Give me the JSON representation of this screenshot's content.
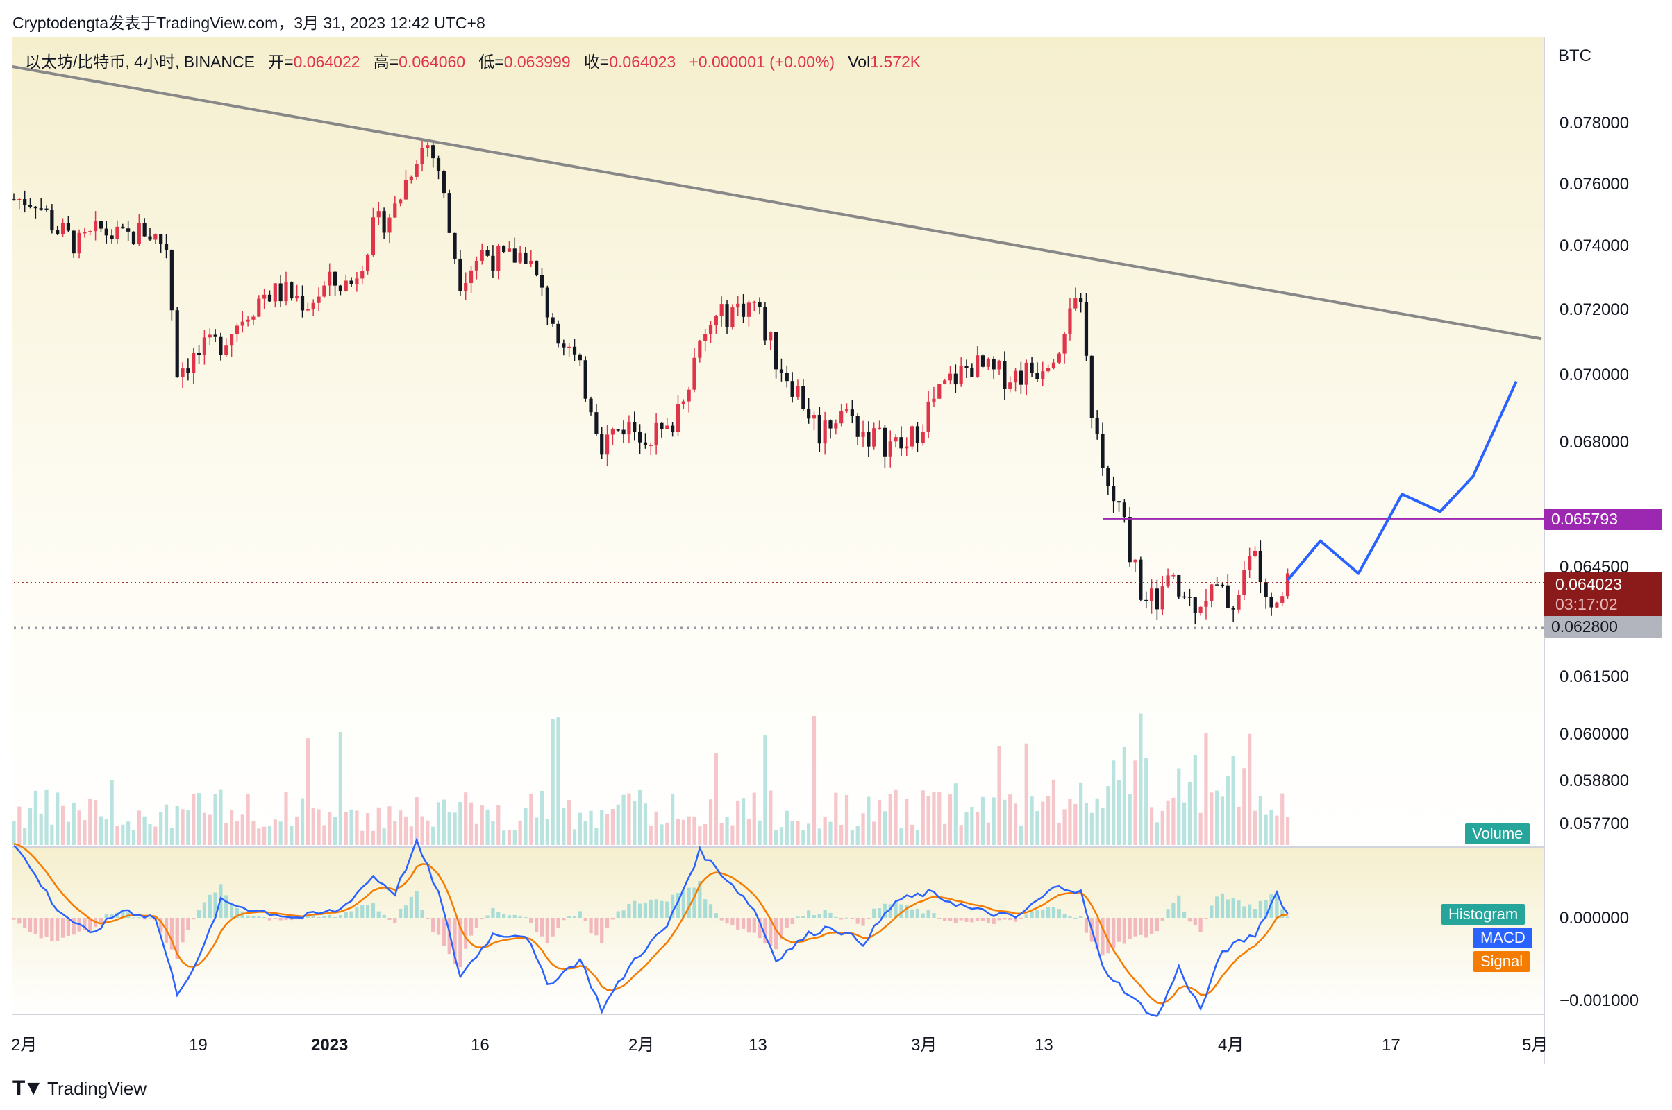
{
  "header": {
    "publish_text": "Cryptodengta发表于TradingView.com，3月 31, 2023 12:42 UTC+8"
  },
  "ohlc": {
    "symbol_text": "以太坊/比特币, 4小时, BINANCE",
    "open_label": "开=",
    "open": "0.064022",
    "high_label": "高=",
    "high": "0.064060",
    "low_label": "低=",
    "low": "0.063999",
    "close_label": "收=",
    "close": "0.064023",
    "change": "+0.000001 (+0.00%)",
    "vol_label": "Vol",
    "vol": "1.572K"
  },
  "price_axis": {
    "currency": "BTC",
    "ticks": [
      "0.078000",
      "0.076000",
      "0.074000",
      "0.072000",
      "0.070000",
      "0.068000",
      "0.064500",
      "0.061500",
      "0.060000",
      "0.058800",
      "0.057700"
    ]
  },
  "macd_axis": {
    "ticks": [
      "0.000000",
      "−0.001000"
    ]
  },
  "time_axis": {
    "ticks": [
      "2月",
      "19",
      "2023",
      "16",
      "2月",
      "13",
      "3月",
      "13",
      "4月",
      "17",
      "5月"
    ]
  },
  "price_tags": {
    "resistance": "0.065793",
    "last_price": "0.064023",
    "countdown": "03:17:02",
    "support": "0.062800"
  },
  "legends": {
    "volume": "Volume",
    "histogram": "Histogram",
    "macd": "MACD",
    "signal": "Signal"
  },
  "footer": {
    "brand": "TradingView"
  },
  "colors": {
    "bull": "#e0344b",
    "bear": "#131722",
    "trendline": "#888888",
    "projection": "#2962ff",
    "resistance": "#9c27b0",
    "last_price_bg": "#8b1a1a",
    "support_bg": "#b2b5be",
    "macd": "#2962ff",
    "signal": "#f57c00",
    "histogram_pos": "#26a69a",
    "histogram_neg": "#ef5350",
    "volume_tag": "#26a69a"
  },
  "chart_data": {
    "type": "candlestick",
    "title": "以太坊/比特币, 4小时, BINANCE",
    "ylabel": "BTC",
    "ylim": [
      0.0565,
      0.0805
    ],
    "x_ticks": [
      "2月",
      "19",
      "2023",
      "16",
      "2月",
      "13",
      "3月",
      "13",
      "4月",
      "17",
      "5月"
    ],
    "price_path": [
      [
        0,
        0.0755
      ],
      [
        4,
        0.0755
      ],
      [
        8,
        0.0745
      ],
      [
        12,
        0.074
      ],
      [
        16,
        0.0745
      ],
      [
        20,
        0.0742
      ],
      [
        24,
        0.0745
      ],
      [
        28,
        0.074
      ],
      [
        30,
        0.0702
      ],
      [
        34,
        0.0706
      ],
      [
        38,
        0.071
      ],
      [
        42,
        0.0718
      ],
      [
        46,
        0.0725
      ],
      [
        50,
        0.0725
      ],
      [
        54,
        0.0722
      ],
      [
        58,
        0.0728
      ],
      [
        62,
        0.0728
      ],
      [
        66,
        0.0745
      ],
      [
        70,
        0.0752
      ],
      [
        74,
        0.077
      ],
      [
        76,
        0.0773
      ],
      [
        78,
        0.0765
      ],
      [
        80,
        0.0745
      ],
      [
        82,
        0.073
      ],
      [
        86,
        0.0738
      ],
      [
        90,
        0.0735
      ],
      [
        94,
        0.0738
      ],
      [
        98,
        0.072
      ],
      [
        102,
        0.0708
      ],
      [
        106,
        0.0692
      ],
      [
        108,
        0.068
      ],
      [
        112,
        0.0685
      ],
      [
        116,
        0.0683
      ],
      [
        120,
        0.0682
      ],
      [
        124,
        0.07
      ],
      [
        128,
        0.0715
      ],
      [
        132,
        0.072
      ],
      [
        136,
        0.0722
      ],
      [
        140,
        0.0705
      ],
      [
        144,
        0.0695
      ],
      [
        148,
        0.0683
      ],
      [
        152,
        0.069
      ],
      [
        156,
        0.0683
      ],
      [
        160,
        0.068
      ],
      [
        164,
        0.0678
      ],
      [
        168,
        0.069
      ],
      [
        172,
        0.0698
      ],
      [
        176,
        0.0703
      ],
      [
        180,
        0.07
      ],
      [
        184,
        0.07
      ],
      [
        188,
        0.0702
      ],
      [
        192,
        0.071
      ],
      [
        194,
        0.0723
      ],
      [
        196,
        0.0718
      ],
      [
        198,
        0.069
      ],
      [
        200,
        0.067
      ],
      [
        203,
        0.066
      ],
      [
        206,
        0.0645
      ],
      [
        208,
        0.0633
      ],
      [
        212,
        0.064
      ],
      [
        216,
        0.0635
      ],
      [
        220,
        0.0638
      ],
      [
        224,
        0.0635
      ],
      [
        228,
        0.065
      ],
      [
        230,
        0.0632
      ],
      [
        234,
        0.0641
      ]
    ],
    "projection": [
      [
        234,
        0.0641
      ],
      [
        240,
        0.0652
      ],
      [
        247,
        0.0643
      ],
      [
        255,
        0.0665
      ],
      [
        262,
        0.066
      ],
      [
        268,
        0.067
      ],
      [
        276,
        0.0698
      ]
    ],
    "trendline": [
      [
        0,
        0.0798
      ],
      [
        280,
        0.0711
      ]
    ],
    "horizontal_levels": {
      "resistance": 0.065793,
      "last_price": 0.064023,
      "support": 0.0628
    },
    "macd": {
      "ylim": [
        -0.0013,
        0.0012
      ],
      "macd_path": [
        [
          0,
          0.0009
        ],
        [
          8,
          0.0001
        ],
        [
          14,
          -0.0002
        ],
        [
          20,
          0.0001
        ],
        [
          26,
          0.0
        ],
        [
          30,
          -0.0009
        ],
        [
          34,
          -0.0005
        ],
        [
          38,
          0.0002
        ],
        [
          44,
          0.0001
        ],
        [
          52,
          0.0
        ],
        [
          60,
          0.0001
        ],
        [
          66,
          0.0005
        ],
        [
          70,
          0.0003
        ],
        [
          74,
          0.0009
        ],
        [
          78,
          0.0003
        ],
        [
          82,
          -0.0007
        ],
        [
          88,
          -0.0002
        ],
        [
          94,
          -0.0002
        ],
        [
          98,
          -0.0008
        ],
        [
          104,
          -0.0005
        ],
        [
          108,
          -0.0011
        ],
        [
          114,
          -0.0005
        ],
        [
          120,
          -0.0001
        ],
        [
          126,
          0.0008
        ],
        [
          132,
          0.0004
        ],
        [
          136,
          0.0001
        ],
        [
          140,
          -0.0005
        ],
        [
          146,
          -0.0002
        ],
        [
          150,
          -0.0001
        ],
        [
          156,
          -0.0003
        ],
        [
          162,
          0.0002
        ],
        [
          168,
          0.0003
        ],
        [
          176,
          0.0001
        ],
        [
          184,
          0.0
        ],
        [
          192,
          0.0004
        ],
        [
          196,
          0.0003
        ],
        [
          200,
          -0.0006
        ],
        [
          206,
          -0.001
        ],
        [
          210,
          -0.0012
        ],
        [
          214,
          -0.0006
        ],
        [
          218,
          -0.0011
        ],
        [
          222,
          -0.0004
        ],
        [
          228,
          -0.0002
        ],
        [
          232,
          0.0003
        ],
        [
          236,
          -0.0002
        ],
        [
          238,
          0.0
        ]
      ]
    }
  }
}
